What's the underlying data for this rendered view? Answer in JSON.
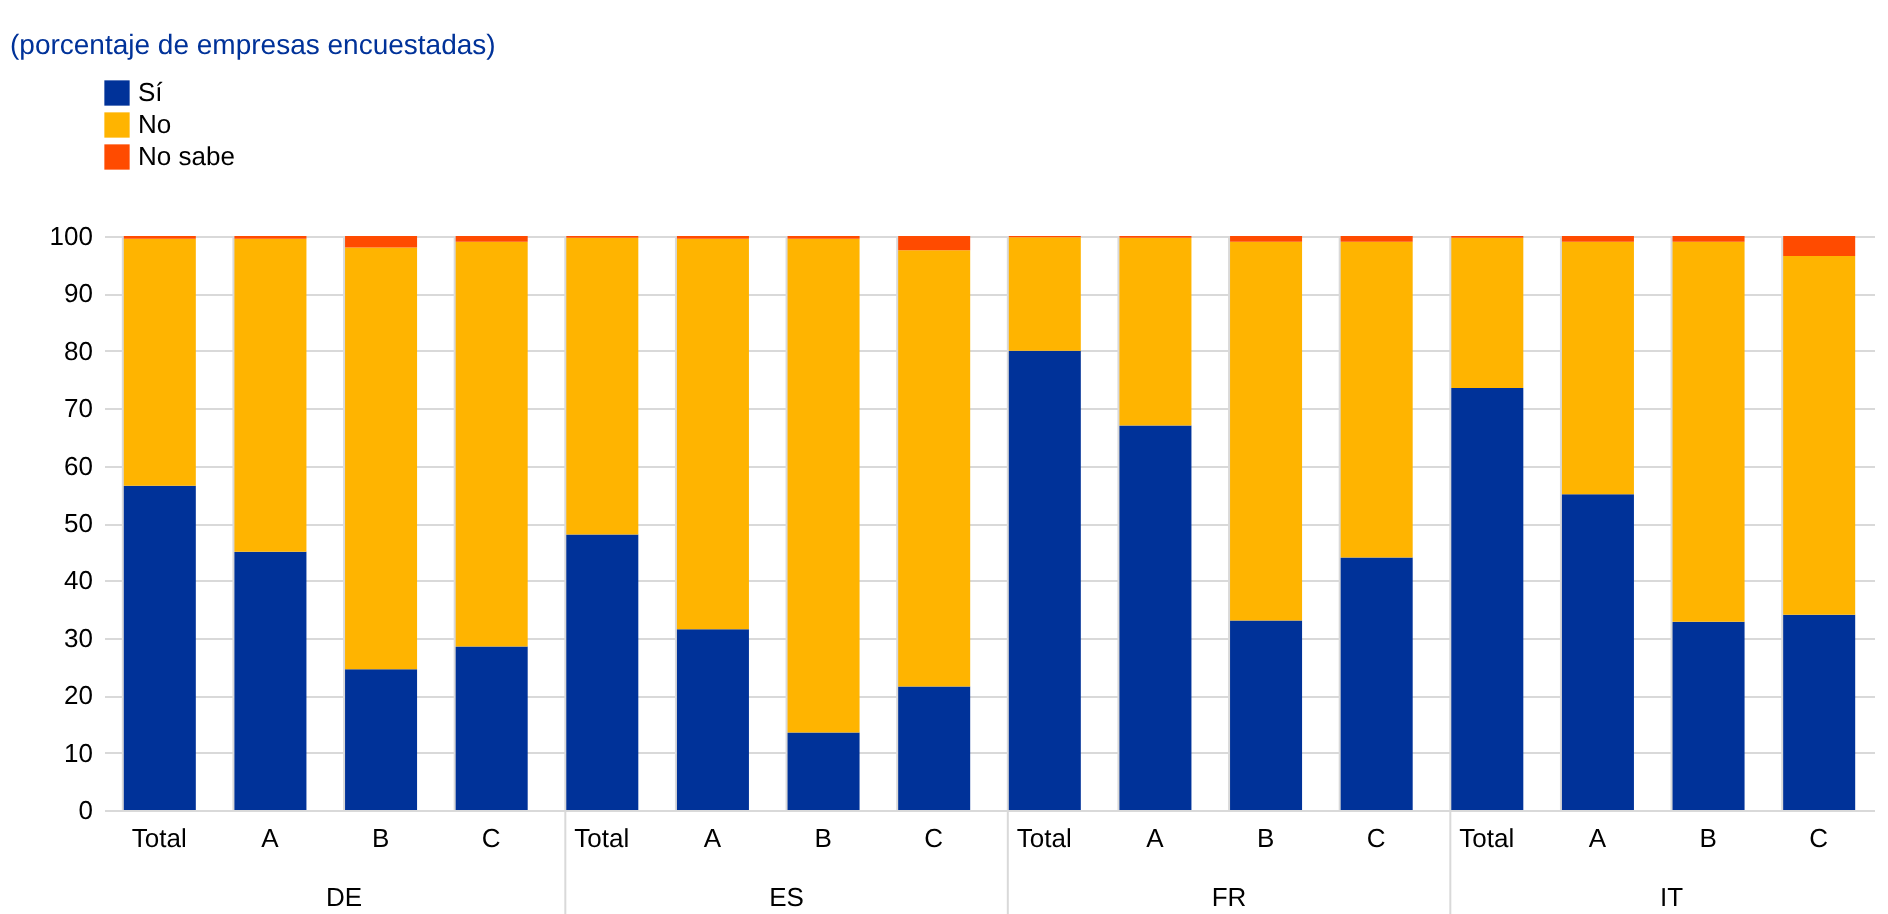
{
  "chart_data": {
    "type": "bar",
    "title": "(porcentaje de empresas encuestadas)",
    "stacked": true,
    "legend": "top left",
    "grid": true,
    "categories": [
      "Total",
      "A",
      "B",
      "C",
      "Total",
      "A",
      "B",
      "C",
      "Total",
      "A",
      "B",
      "C",
      "Total",
      "A",
      "B",
      "C"
    ],
    "annotations": [
      "DE",
      "ES",
      "FR",
      "IT"
    ],
    "ylim": [
      0,
      100
    ],
    "yticks": [
      0,
      10,
      20,
      30,
      40,
      50,
      60,
      70,
      80,
      90,
      100
    ],
    "series": [
      {
        "name": "Sí",
        "color": "#003299",
        "values": [
          56.5,
          45,
          24.5,
          28.5,
          48,
          31.5,
          13.5,
          21.5,
          80,
          67,
          33,
          44,
          73.5,
          55,
          32.8,
          34
        ]
      },
      {
        "name": "No",
        "color": "#ffb400",
        "values": [
          43,
          54.5,
          73.5,
          70.5,
          51.7,
          68,
          86,
          76,
          19.8,
          32.7,
          66,
          55,
          26.2,
          44,
          66.2,
          62.5
        ]
      },
      {
        "name": "No sabe",
        "color": "#ff4b00",
        "values": [
          0.5,
          0.5,
          2,
          1,
          0.3,
          0.5,
          0.5,
          2.5,
          0.2,
          0.3,
          1,
          1,
          0.3,
          1,
          1,
          3.5
        ]
      }
    ]
  }
}
